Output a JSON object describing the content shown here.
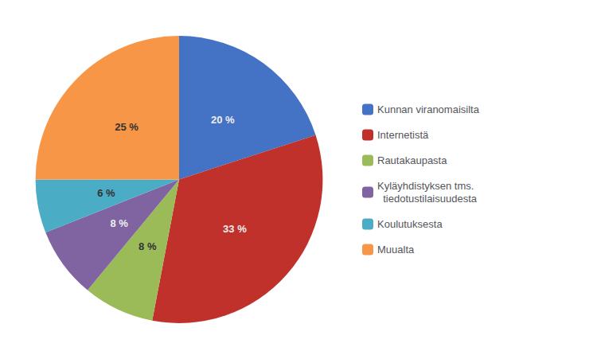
{
  "chart_data": {
    "type": "pie",
    "categories": [
      "Kunnan viranomaisilta",
      "Internetistä",
      "Rautakaupasta",
      "Kyläyhdistyksen tms.\n  tiedotustilaisuudesta",
      "Koulutuksesta",
      "Muualta"
    ],
    "values": [
      20,
      33,
      8,
      8,
      6,
      25
    ],
    "value_labels": [
      "20 %",
      "33 %",
      "8 %",
      "8 %",
      "6 %",
      "25 %"
    ],
    "colors": [
      "#4472C4",
      "#C0312B",
      "#9BBB59",
      "#8064A2",
      "#4BACC6",
      "#F79646"
    ],
    "data_labels": true,
    "legend": "right"
  }
}
